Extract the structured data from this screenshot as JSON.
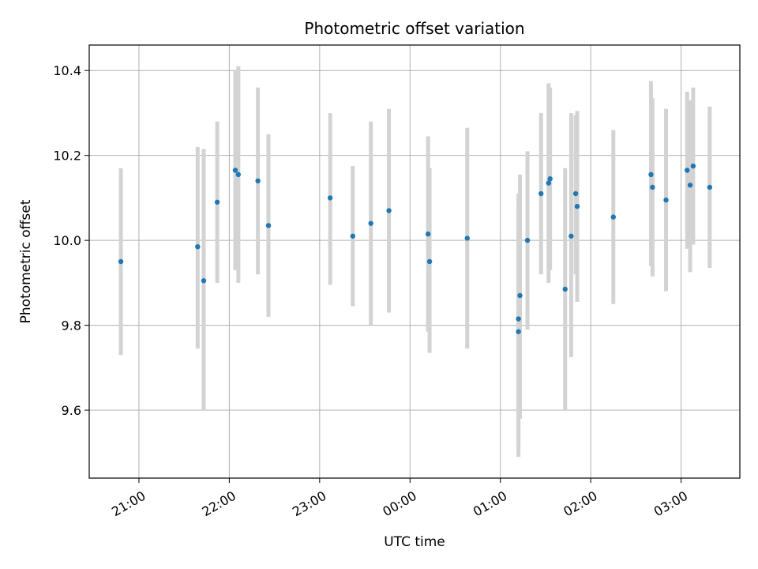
{
  "chart_data": {
    "type": "scatter",
    "title": "Photometric offset variation",
    "xlabel": "UTC time",
    "ylabel": "Photometric offset",
    "grid": true,
    "legend": "none",
    "x_axis": {
      "kind": "time",
      "ticks": [
        {
          "time": "21:00",
          "label": "21:00"
        },
        {
          "time": "22:00",
          "label": "22:00"
        },
        {
          "time": "23:00",
          "label": "23:00"
        },
        {
          "time": "00:00",
          "label": "00:00"
        },
        {
          "time": "01:00",
          "label": "01:00"
        },
        {
          "time": "02:00",
          "label": "02:00"
        },
        {
          "time": "03:00",
          "label": "03:00"
        }
      ],
      "xlim": [
        "20:27",
        "03:39"
      ]
    },
    "y_axis": {
      "ticks": [
        9.6,
        9.8,
        10.0,
        10.2,
        10.4
      ],
      "tick_labels": [
        "9.6",
        "9.8",
        "10.0",
        "10.2",
        "10.4"
      ],
      "ylim": [
        9.44,
        10.46
      ]
    },
    "marker_color": "#1f77b4",
    "errorbar_color": "#d3d3d3",
    "points": [
      {
        "time": "20:48",
        "y": 9.95,
        "low": 9.73,
        "high": 10.17
      },
      {
        "time": "21:39",
        "y": 9.985,
        "low": 9.745,
        "high": 10.22
      },
      {
        "time": "21:43",
        "y": 9.905,
        "low": 9.6,
        "high": 10.215
      },
      {
        "time": "21:52",
        "y": 10.09,
        "low": 9.9,
        "high": 10.28
      },
      {
        "time": "22:04",
        "y": 10.165,
        "low": 9.93,
        "high": 10.4
      },
      {
        "time": "22:06",
        "y": 10.155,
        "low": 9.9,
        "high": 10.41
      },
      {
        "time": "22:19",
        "y": 10.14,
        "low": 9.92,
        "high": 10.36
      },
      {
        "time": "22:26",
        "y": 10.035,
        "low": 9.82,
        "high": 10.25
      },
      {
        "time": "23:07",
        "y": 10.1,
        "low": 9.895,
        "high": 10.3
      },
      {
        "time": "23:22",
        "y": 10.01,
        "low": 9.845,
        "high": 10.175
      },
      {
        "time": "23:34",
        "y": 10.04,
        "low": 9.8,
        "high": 10.28
      },
      {
        "time": "23:46",
        "y": 10.07,
        "low": 9.83,
        "high": 10.31
      },
      {
        "time": "00:12",
        "y": 10.015,
        "low": 9.785,
        "high": 10.245
      },
      {
        "time": "00:13",
        "y": 9.95,
        "low": 9.735,
        "high": 10.17
      },
      {
        "time": "00:38",
        "y": 10.005,
        "low": 9.745,
        "high": 10.265
      },
      {
        "time": "01:12",
        "y": 9.815,
        "low": 9.52,
        "high": 10.11
      },
      {
        "time": "01:12",
        "y": 9.785,
        "low": 9.49,
        "high": 10.08
      },
      {
        "time": "01:13",
        "y": 9.87,
        "low": 9.58,
        "high": 10.155
      },
      {
        "time": "01:18",
        "y": 10.0,
        "low": 9.79,
        "high": 10.21
      },
      {
        "time": "01:27",
        "y": 10.11,
        "low": 9.92,
        "high": 10.3
      },
      {
        "time": "01:32",
        "y": 10.135,
        "low": 9.9,
        "high": 10.37
      },
      {
        "time": "01:33",
        "y": 10.145,
        "low": 9.93,
        "high": 10.36
      },
      {
        "time": "01:43",
        "y": 9.885,
        "low": 9.6,
        "high": 10.17
      },
      {
        "time": "01:47",
        "y": 10.01,
        "low": 9.725,
        "high": 10.3
      },
      {
        "time": "01:50",
        "y": 10.11,
        "low": 9.92,
        "high": 10.295
      },
      {
        "time": "01:51",
        "y": 10.08,
        "low": 9.855,
        "high": 10.305
      },
      {
        "time": "02:15",
        "y": 10.055,
        "low": 9.85,
        "high": 10.26
      },
      {
        "time": "02:40",
        "y": 10.155,
        "low": 9.94,
        "high": 10.375
      },
      {
        "time": "02:41",
        "y": 10.125,
        "low": 9.915,
        "high": 10.335
      },
      {
        "time": "02:50",
        "y": 10.095,
        "low": 9.88,
        "high": 10.31
      },
      {
        "time": "03:04",
        "y": 10.165,
        "low": 9.98,
        "high": 10.35
      },
      {
        "time": "03:06",
        "y": 10.13,
        "low": 9.925,
        "high": 10.33
      },
      {
        "time": "03:08",
        "y": 10.175,
        "low": 9.99,
        "high": 10.36
      },
      {
        "time": "03:19",
        "y": 10.125,
        "low": 9.935,
        "high": 10.315
      }
    ]
  }
}
